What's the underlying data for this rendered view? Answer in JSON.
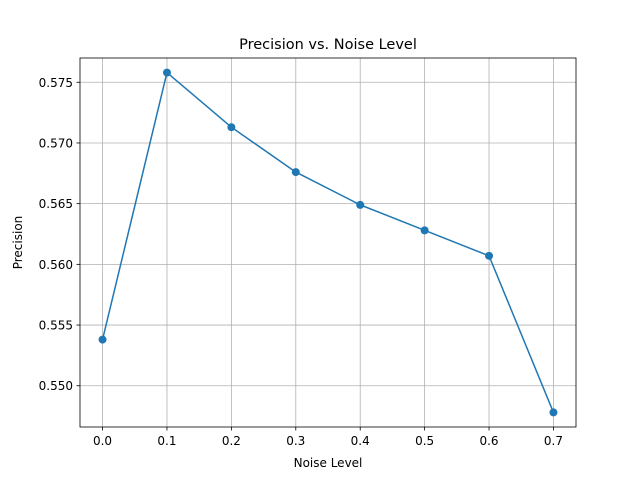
{
  "chart_data": {
    "type": "line",
    "title": "Precision vs. Noise Level",
    "xlabel": "Noise Level",
    "ylabel": "Precision",
    "x": [
      0.0,
      0.1,
      0.2,
      0.3,
      0.4,
      0.5,
      0.6,
      0.7
    ],
    "series": [
      {
        "values": [
          0.5538,
          0.5758,
          0.5713,
          0.5676,
          0.5649,
          0.5628,
          0.5607,
          0.5478
        ],
        "color": "#1f77b4",
        "marker": "circle"
      }
    ],
    "xlim": [
      -0.035,
      0.735
    ],
    "ylim": [
      0.5466,
      0.577
    ],
    "xticks": [
      "0.0",
      "0.1",
      "0.2",
      "0.3",
      "0.4",
      "0.5",
      "0.6",
      "0.7"
    ],
    "xtick_values": [
      0.0,
      0.1,
      0.2,
      0.3,
      0.4,
      0.5,
      0.6,
      0.7
    ],
    "yticks": [
      "0.550",
      "0.555",
      "0.560",
      "0.565",
      "0.570",
      "0.575"
    ],
    "ytick_values": [
      0.55,
      0.555,
      0.56,
      0.565,
      0.57,
      0.575
    ],
    "grid": true,
    "grid_color": "#b0b0b0"
  }
}
